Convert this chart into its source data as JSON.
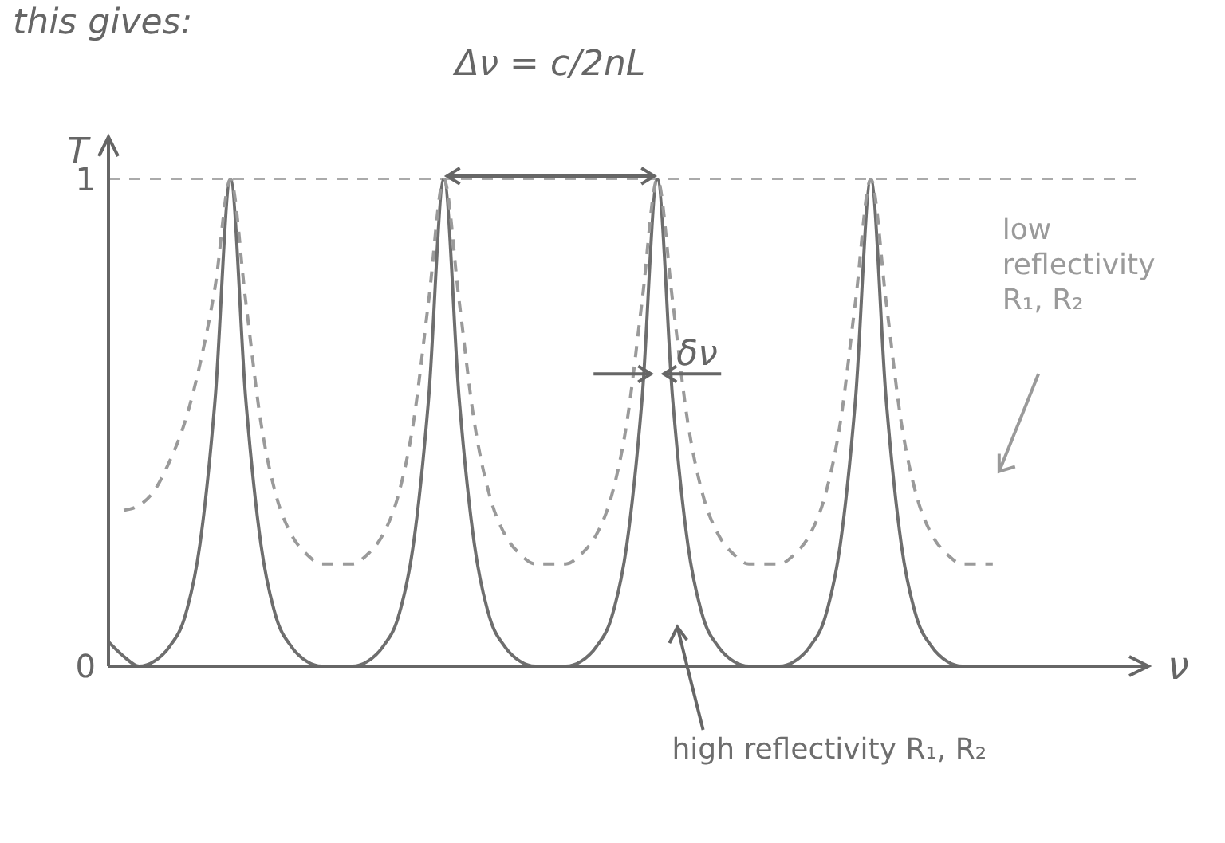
{
  "chart_data": {
    "type": "line",
    "xlabel": "ν",
    "ylabel": "T",
    "categories": [
      null,
      null,
      null,
      null,
      null,
      null,
      null,
      null,
      null,
      null,
      null,
      null,
      null,
      null,
      null,
      null,
      null,
      null,
      null,
      null,
      null,
      null,
      null,
      null,
      null,
      null,
      null,
      null,
      null,
      null,
      null,
      null,
      null,
      null,
      null,
      null,
      null,
      null,
      null,
      null,
      null,
      null,
      null,
      null,
      null,
      null,
      null,
      null,
      null,
      null,
      null,
      null,
      null,
      null,
      null,
      null,
      null,
      null,
      null,
      null,
      null,
      null,
      null,
      null,
      null,
      null,
      null,
      null,
      null
    ],
    "series": [
      {
        "name": "high reflectivity R₁, R₂",
        "color": "#6e6e6e",
        "line_style": "solid",
        "values": [
          0.05,
          0.02,
          0,
          0.01,
          0.04,
          0.1,
          0.25,
          0.55,
          1,
          0.55,
          0.25,
          0.1,
          0.04,
          0.01,
          0,
          0,
          0,
          0.01,
          0.04,
          0.1,
          0.25,
          0.55,
          1,
          0.55,
          0.25,
          0.1,
          0.04,
          0.01,
          0,
          0,
          0,
          0.01,
          0.04,
          0.1,
          0.25,
          0.55,
          1,
          0.55,
          0.25,
          0.1,
          0.04,
          0.01,
          0,
          0,
          0,
          0.01,
          0.04,
          0.1,
          0.25,
          0.55,
          1,
          0.55,
          0.25,
          0.1,
          0.04,
          0.01,
          0,
          0,
          0,
          null,
          null,
          null,
          null,
          null,
          null,
          null,
          null,
          null,
          null
        ]
      },
      {
        "name": "low reflectivity R₁, R₂",
        "color": "#9a9a9a",
        "line_style": "dashed",
        "values": [
          null,
          0.32,
          0.33,
          0.36,
          0.42,
          0.5,
          0.62,
          0.78,
          1,
          0.75,
          0.5,
          0.35,
          0.27,
          0.23,
          0.21,
          0.21,
          0.21,
          0.23,
          0.27,
          0.35,
          0.5,
          0.75,
          1,
          0.75,
          0.5,
          0.35,
          0.27,
          0.23,
          0.21,
          0.21,
          0.21,
          0.23,
          0.27,
          0.35,
          0.5,
          0.75,
          1,
          0.75,
          0.5,
          0.35,
          0.27,
          0.23,
          0.21,
          0.21,
          0.21,
          0.23,
          0.27,
          0.35,
          0.5,
          0.75,
          1,
          0.75,
          0.5,
          0.35,
          0.27,
          0.23,
          0.21,
          0.21,
          0.21,
          null,
          null,
          null,
          null,
          null,
          null,
          null,
          null,
          null,
          null
        ]
      }
    ],
    "ylim": [
      0,
      1.08
    ],
    "yticks": [
      0,
      1
    ],
    "marker": "none",
    "tick_labels": "y",
    "ref_lines": [
      {
        "axis": "y",
        "value": 1,
        "color": "#aaaaaa",
        "line_style": "dashed"
      }
    ],
    "annotations": [
      "this gives:",
      "Δν = c/2nL",
      "δν"
    ]
  }
}
